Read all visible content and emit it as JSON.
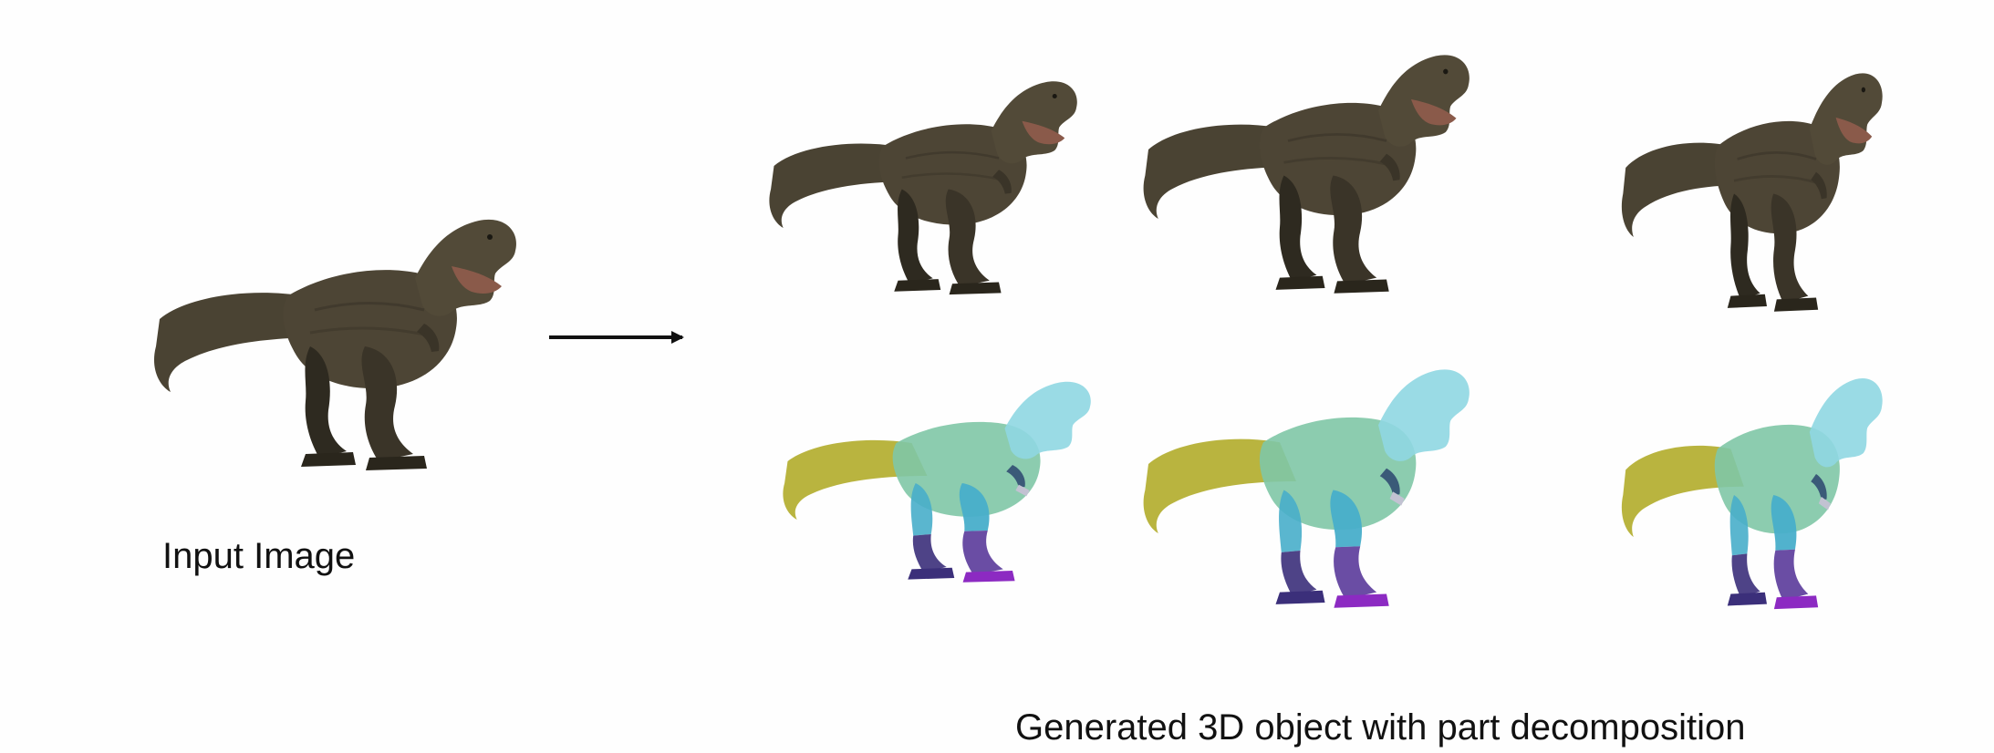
{
  "captions": {
    "input": "Input Image",
    "output": "Generated 3D object with part decomposition"
  },
  "colors": {
    "background": "#fefefe",
    "text": "#111111",
    "arrow": "#111111",
    "dino_skin": "#4a4333",
    "dino_shade": "#2e2a20",
    "part_tail": "#b3ae2f",
    "part_torso": "#7fc7a6",
    "part_head": "#8fd7e2",
    "part_upper_leg": "#48aeca",
    "part_lower_leg": "#3b2f7a",
    "part_foot": "#8c2ac2",
    "part_arm": "#3a5a78",
    "part_hand": "#c2c2d2"
  },
  "panels": {
    "input_image": {
      "icon": "t-rex-photo-icon"
    },
    "outputs_textured": [
      {
        "icon": "t-rex-textured-render-icon"
      },
      {
        "icon": "t-rex-textured-render-icon"
      },
      {
        "icon": "t-rex-textured-render-icon"
      }
    ],
    "outputs_parts": [
      {
        "icon": "t-rex-part-segmentation-icon"
      },
      {
        "icon": "t-rex-part-segmentation-icon"
      },
      {
        "icon": "t-rex-part-segmentation-icon"
      }
    ]
  }
}
